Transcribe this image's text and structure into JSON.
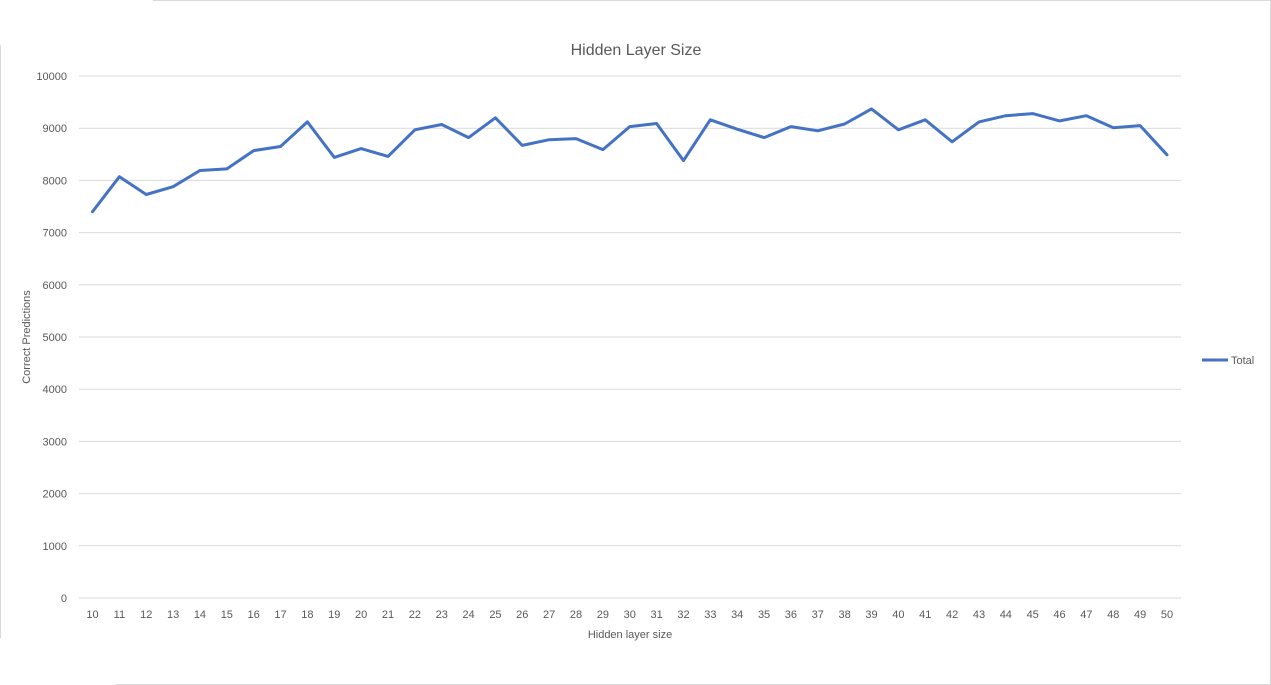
{
  "chart_data": {
    "type": "line",
    "title": "Hidden Layer Size",
    "xlabel": "Hidden layer size",
    "ylabel": "Correct Predictions",
    "ylim": [
      0,
      10000
    ],
    "y_ticks": [
      "0",
      "1000",
      "2000",
      "3000",
      "4000",
      "5000",
      "6000",
      "7000",
      "8000",
      "9000",
      "10000"
    ],
    "grid": true,
    "legend_position": "right",
    "categories": [
      "10",
      "11",
      "12",
      "13",
      "14",
      "15",
      "16",
      "17",
      "18",
      "19",
      "20",
      "21",
      "22",
      "23",
      "24",
      "25",
      "26",
      "27",
      "28",
      "29",
      "30",
      "31",
      "32",
      "33",
      "34",
      "35",
      "36",
      "37",
      "38",
      "39",
      "40",
      "41",
      "42",
      "43",
      "44",
      "45",
      "46",
      "47",
      "48",
      "49",
      "50"
    ],
    "series": [
      {
        "name": "Total",
        "color": "#4472c4",
        "values": [
          7400,
          8070,
          7730,
          7880,
          8190,
          8220,
          8570,
          8650,
          9120,
          8440,
          8610,
          8460,
          8970,
          9070,
          8820,
          9200,
          8670,
          8780,
          8800,
          8590,
          9030,
          9090,
          8380,
          9160,
          8980,
          8820,
          9030,
          8950,
          9080,
          9370,
          8970,
          9160,
          8740,
          9120,
          9240,
          9280,
          9140,
          9240,
          9010,
          9050,
          8490
        ]
      }
    ]
  }
}
